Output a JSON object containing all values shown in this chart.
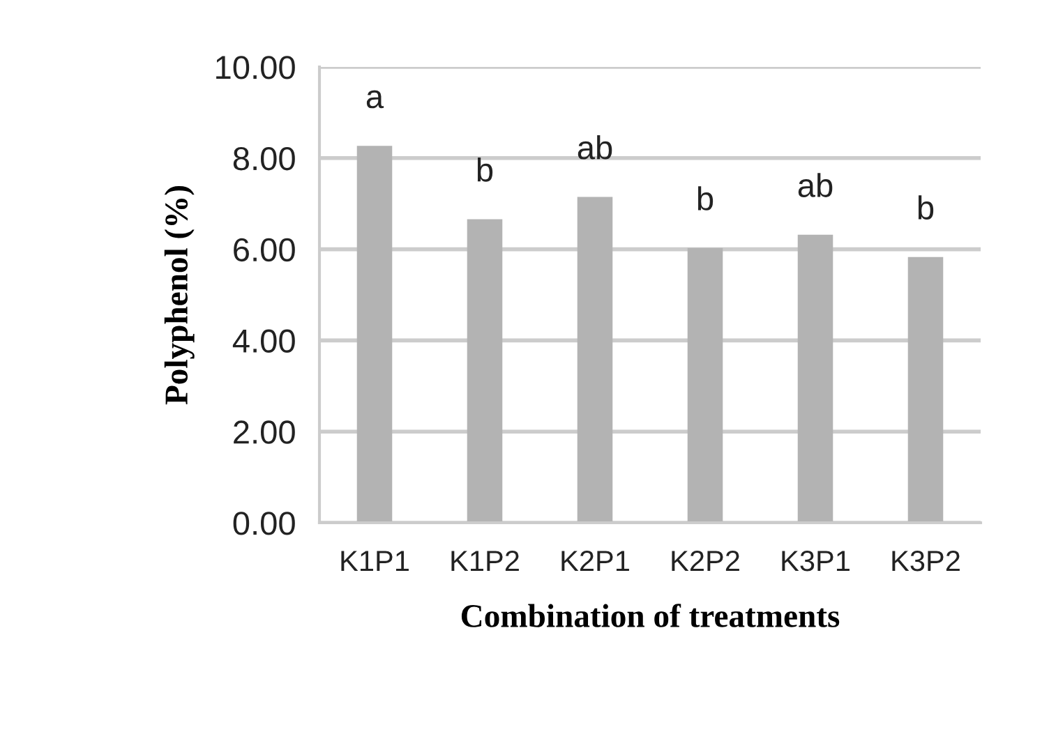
{
  "chart_data": {
    "type": "bar",
    "xlabel": "Combination of treatments",
    "ylabel": "Polyphenol (%)",
    "categories": [
      "K1P1",
      "K1P2",
      "K2P1",
      "K2P2",
      "K3P1",
      "K3P2"
    ],
    "values": [
      8.27,
      6.66,
      7.15,
      6.03,
      6.32,
      5.83
    ],
    "color": "#b3b3b3",
    "ylim": [
      0,
      10
    ],
    "yticks": [
      {
        "value": 0,
        "label": "0.00"
      },
      {
        "value": 2,
        "label": "2.00"
      },
      {
        "value": 4,
        "label": "4.00"
      },
      {
        "value": 6,
        "label": "6.00"
      },
      {
        "value": 8,
        "label": "8.00"
      },
      {
        "value": 10,
        "label": "10.00"
      }
    ],
    "grid": "y",
    "annotations": [
      "a",
      "b",
      "ab",
      "b",
      "ab",
      "b"
    ]
  }
}
